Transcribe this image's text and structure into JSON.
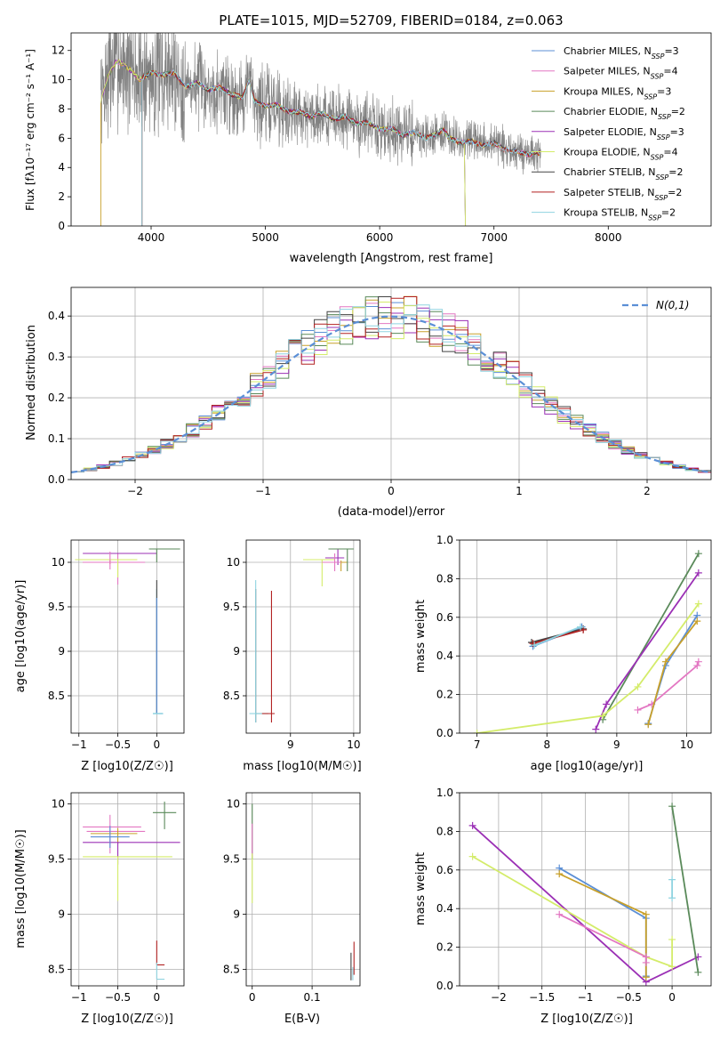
{
  "figure": {
    "title": "PLATE=1015, MJD=52709, FIBERID=0184, z=0.063"
  },
  "chart_data": [
    {
      "id": "spectrum",
      "type": "line",
      "xlabel": "wavelength [Angstrom, rest frame]",
      "ylabel": "Flux [fλ10⁻¹⁷ erg cm⁻² s⁻¹ A⁻¹]",
      "xlim": [
        3300,
        8900
      ],
      "ylim": [
        0,
        13.2
      ],
      "xticks": [
        4000,
        5000,
        6000,
        7000,
        8000
      ],
      "yticks": [
        0,
        2,
        4,
        6,
        8,
        10,
        12
      ],
      "grid": false,
      "legend_position": "top-right",
      "data_series": {
        "name": "",
        "color": "#808080",
        "x_range": [
          3560,
          7410
        ]
      },
      "continuum": {
        "x": [
          3560,
          3620,
          3700,
          3800,
          3900,
          4000,
          4100,
          4200,
          4300,
          4400,
          4500,
          4600,
          4700,
          4800,
          4860,
          4900,
          5000,
          5100,
          5200,
          5300,
          5400,
          5500,
          5600,
          5700,
          5800,
          5900,
          6000,
          6100,
          6200,
          6300,
          6400,
          6500,
          6562,
          6600,
          6700,
          6800,
          6900,
          7000,
          7100,
          7200,
          7300,
          7410
        ],
        "y": [
          8.5,
          10.2,
          11.3,
          10.8,
          10.0,
          10.5,
          10.3,
          10.5,
          9.5,
          9.8,
          9.3,
          9.5,
          9.0,
          8.8,
          10.0,
          8.6,
          8.2,
          8.3,
          7.8,
          7.8,
          7.5,
          7.7,
          7.3,
          7.5,
          7.0,
          7.1,
          6.6,
          6.7,
          6.2,
          6.4,
          6.0,
          6.3,
          6.6,
          6.1,
          5.7,
          5.8,
          5.5,
          5.7,
          5.2,
          5.1,
          4.9,
          5.0
        ]
      },
      "series": [
        {
          "name": "Chabrier MILES, N_SSP=3",
          "name_main": "Chabrier MILES, N",
          "name_sub": "SSP",
          "name_tail": "=3",
          "color": "#5b8fd6"
        },
        {
          "name": "Salpeter MILES, N_SSP=4",
          "name_main": "Salpeter MILES, N",
          "name_sub": "SSP",
          "name_tail": "=4",
          "color": "#e377c2"
        },
        {
          "name": "Kroupa MILES, N_SSP=3",
          "name_main": "Kroupa MILES, N",
          "name_sub": "SSP",
          "name_tail": "=3",
          "color": "#c8a02a"
        },
        {
          "name": "Chabrier ELODIE, N_SSP=2",
          "name_main": "Chabrier ELODIE, N",
          "name_sub": "SSP",
          "name_tail": "=2",
          "color": "#5a8a5a"
        },
        {
          "name": "Salpeter ELODIE, N_SSP=3",
          "name_main": "Salpeter ELODIE, N",
          "name_sub": "SSP",
          "name_tail": "=3",
          "color": "#9b30b5"
        },
        {
          "name": "Kroupa ELODIE, N_SSP=4",
          "name_main": "Kroupa ELODIE, N",
          "name_sub": "SSP",
          "name_tail": "=4",
          "color": "#d4ec6a"
        },
        {
          "name": "Chabrier STELIB, N_SSP=2",
          "name_main": "Chabrier STELIB, N",
          "name_sub": "SSP",
          "name_tail": "=2",
          "color": "#444444"
        },
        {
          "name": "Salpeter STELIB, N_SSP=2",
          "name_main": "Salpeter STELIB, N",
          "name_sub": "SSP",
          "name_tail": "=2",
          "color": "#b22222"
        },
        {
          "name": "Kroupa STELIB, N_SSP=2",
          "name_main": "Kroupa STELIB, N",
          "name_sub": "SSP",
          "name_tail": "=2",
          "color": "#8fd3e0"
        }
      ],
      "model_ranges": [
        [
          3560,
          7410
        ],
        [
          3560,
          7410
        ],
        [
          3560,
          7410
        ],
        [
          3560,
          6750
        ],
        [
          3560,
          6750
        ],
        [
          3560,
          6750
        ],
        [
          3920,
          7410
        ],
        [
          3920,
          7410
        ],
        [
          3920,
          7410
        ]
      ]
    },
    {
      "id": "residuals",
      "type": "histogram",
      "xlabel": "(data-model)/error",
      "ylabel": "Normed distribution",
      "xlim": [
        -2.5,
        2.5
      ],
      "ylim": [
        0,
        0.47
      ],
      "xticks": [
        -2,
        -1,
        0,
        1,
        2
      ],
      "yticks": [
        0.0,
        0.1,
        0.2,
        0.3,
        0.4
      ],
      "grid": true,
      "legend_position": "top-right",
      "reference": {
        "name": "N(0,1)",
        "color": "#5b8fd6",
        "mean": 0,
        "sigma": 1
      },
      "bins": {
        "start": -2.5,
        "width": 0.1,
        "count": 50
      }
    },
    {
      "id": "age_vs_Z",
      "type": "errorbar",
      "xlabel": "Z [log10(Z/Z☉)]",
      "ylabel": "age  [log10(age/yr)]",
      "xlim": [
        -1.1,
        0.35
      ],
      "ylim": [
        8.08,
        10.25
      ],
      "xticks": [
        -1.0,
        -0.5,
        0.0
      ],
      "yticks": [
        8.5,
        9.0,
        9.5,
        10.0
      ],
      "grid": true
    },
    {
      "id": "age_vs_mass",
      "type": "errorbar",
      "xlabel": "mass [log10(M/M☉)]",
      "ylabel": "",
      "xlim": [
        8.3,
        10.1
      ],
      "ylim": [
        8.08,
        10.25
      ],
      "xticks": [
        9,
        10
      ],
      "yticks": [
        8.5,
        9.0,
        9.5,
        10.0
      ],
      "grid": true
    },
    {
      "id": "weight_vs_age",
      "type": "line",
      "xlabel": "age  [log10(age/yr)]",
      "ylabel": "mass weight",
      "xlim": [
        6.75,
        10.35
      ],
      "ylim": [
        0,
        1
      ],
      "xticks": [
        7,
        8,
        9,
        10
      ],
      "yticks": [
        0.0,
        0.2,
        0.4,
        0.6,
        0.8,
        1.0
      ],
      "grid": true,
      "lines": [
        {
          "model": 0,
          "x": [
            7.8,
            8.5
          ],
          "y": [
            0.45,
            0.55
          ]
        },
        {
          "model": 6,
          "x": [
            7.78,
            8.52
          ],
          "y": [
            0.47,
            0.54
          ]
        },
        {
          "model": 7,
          "x": [
            7.8,
            8.52
          ],
          "y": [
            0.465,
            0.535
          ]
        },
        {
          "model": 8,
          "x": [
            7.82,
            8.48
          ],
          "y": [
            0.455,
            0.55
          ]
        },
        {
          "model": 3,
          "x": [
            8.8,
            10.17
          ],
          "y": [
            0.07,
            0.93
          ]
        },
        {
          "model": 4,
          "x": [
            8.7,
            8.85,
            10.17
          ],
          "y": [
            0.02,
            0.15,
            0.83
          ]
        },
        {
          "model": 5,
          "x": [
            7.0,
            8.8,
            9.3,
            10.17
          ],
          "y": [
            0.0,
            0.09,
            0.24,
            0.67
          ]
        },
        {
          "model": 1,
          "x": [
            9.3,
            9.5,
            10.15,
            10.17
          ],
          "y": [
            0.12,
            0.15,
            0.35,
            0.37
          ]
        },
        {
          "model": 0,
          "x": [
            9.45,
            9.7,
            10.15
          ],
          "y": [
            0.05,
            0.35,
            0.61
          ]
        },
        {
          "model": 2,
          "x": [
            9.45,
            9.7,
            10.15
          ],
          "y": [
            0.045,
            0.37,
            0.58
          ]
        }
      ]
    },
    {
      "id": "mass_vs_Z",
      "type": "errorbar",
      "xlabel": "Z [log10(Z/Z☉)]",
      "ylabel": "mass [log10(M/M☉)]",
      "xlim": [
        -1.1,
        0.35
      ],
      "ylim": [
        8.35,
        10.1
      ],
      "xticks": [
        -1.0,
        -0.5,
        0.0
      ],
      "yticks": [
        8.5,
        9.0,
        9.5,
        10.0
      ],
      "grid": true
    },
    {
      "id": "mass_vs_EBV",
      "type": "errorbar",
      "xlabel": "E(B-V)",
      "ylabel": "",
      "xlim": [
        -0.01,
        0.18
      ],
      "ylim": [
        8.35,
        10.1
      ],
      "xticks": [
        0.0,
        0.1
      ],
      "yticks": [
        8.5,
        9.0,
        9.5,
        10.0
      ],
      "grid": true
    },
    {
      "id": "weight_vs_Z",
      "type": "line",
      "xlabel": "Z [log10(Z/Z☉)]",
      "ylabel": "mass weight",
      "xlim": [
        -2.45,
        0.45
      ],
      "ylim": [
        0,
        1
      ],
      "xticks": [
        -2.0,
        -1.5,
        -1.0,
        -0.5,
        0.0
      ],
      "yticks": [
        0.0,
        0.2,
        0.4,
        0.6,
        0.8,
        1.0
      ],
      "grid": true,
      "lines": [
        {
          "model": 4,
          "x": [
            -2.3,
            -0.3,
            0.3
          ],
          "y": [
            0.83,
            0.02,
            0.15
          ]
        },
        {
          "model": 5,
          "x": [
            -2.3,
            -0.3,
            0.0,
            0.0
          ],
          "y": [
            0.67,
            0.15,
            0.1,
            0.24
          ]
        },
        {
          "model": 0,
          "x": [
            -1.3,
            -0.3,
            -0.3
          ],
          "y": [
            0.61,
            0.35,
            0.05
          ]
        },
        {
          "model": 2,
          "x": [
            -1.3,
            -0.3,
            -0.3
          ],
          "y": [
            0.58,
            0.37,
            0.045
          ]
        },
        {
          "model": 1,
          "x": [
            -1.3,
            -0.3,
            -0.3
          ],
          "y": [
            0.37,
            0.15,
            0.12
          ]
        },
        {
          "model": 3,
          "x": [
            0.0,
            0.3
          ],
          "y": [
            0.93,
            0.07
          ]
        },
        {
          "model": 8,
          "x": [
            0.0,
            0.0
          ],
          "y": [
            0.455,
            0.55
          ]
        }
      ]
    }
  ]
}
